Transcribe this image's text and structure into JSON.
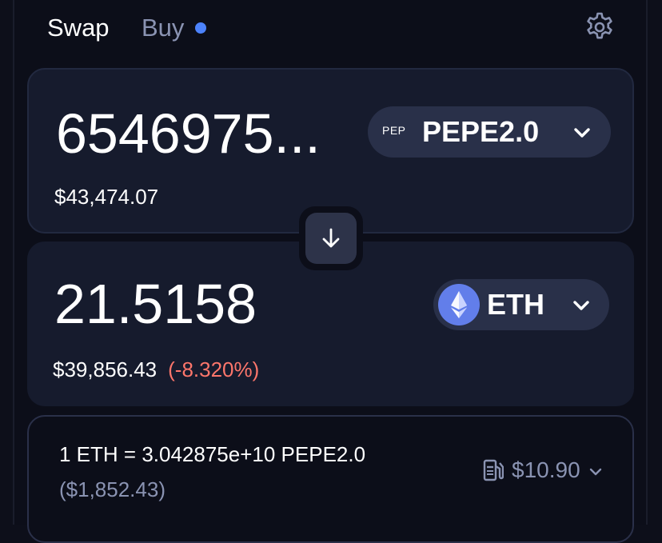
{
  "tabs": {
    "swap": "Swap",
    "buy": "Buy"
  },
  "settings_icon": "gear-icon",
  "input": {
    "amount": "6546975...",
    "usd_value": "$43,474.07",
    "token": {
      "tag": "PEP",
      "symbol": "PEPE2.0"
    }
  },
  "switch_icon": "arrow-down-icon",
  "output": {
    "amount": "21.5158",
    "usd_value": "$39,856.43",
    "price_impact": "(-8.320%)",
    "token": {
      "symbol": "ETH",
      "logo": "ethereum-icon"
    }
  },
  "rate": {
    "text": "1 ETH = 3.042875e+10 PEPE2.0",
    "usd": "($1,852.43)",
    "gas_icon": "gas-pump-icon",
    "gas_cost": "$10.90"
  },
  "colors": {
    "background": "#0c0e19",
    "panel": "#161b2d",
    "token_pill": "#293049",
    "accent_dot": "#4c82fb",
    "negative": "#fd766b",
    "muted": "#8a93b2",
    "eth_logo": "#627eea"
  }
}
